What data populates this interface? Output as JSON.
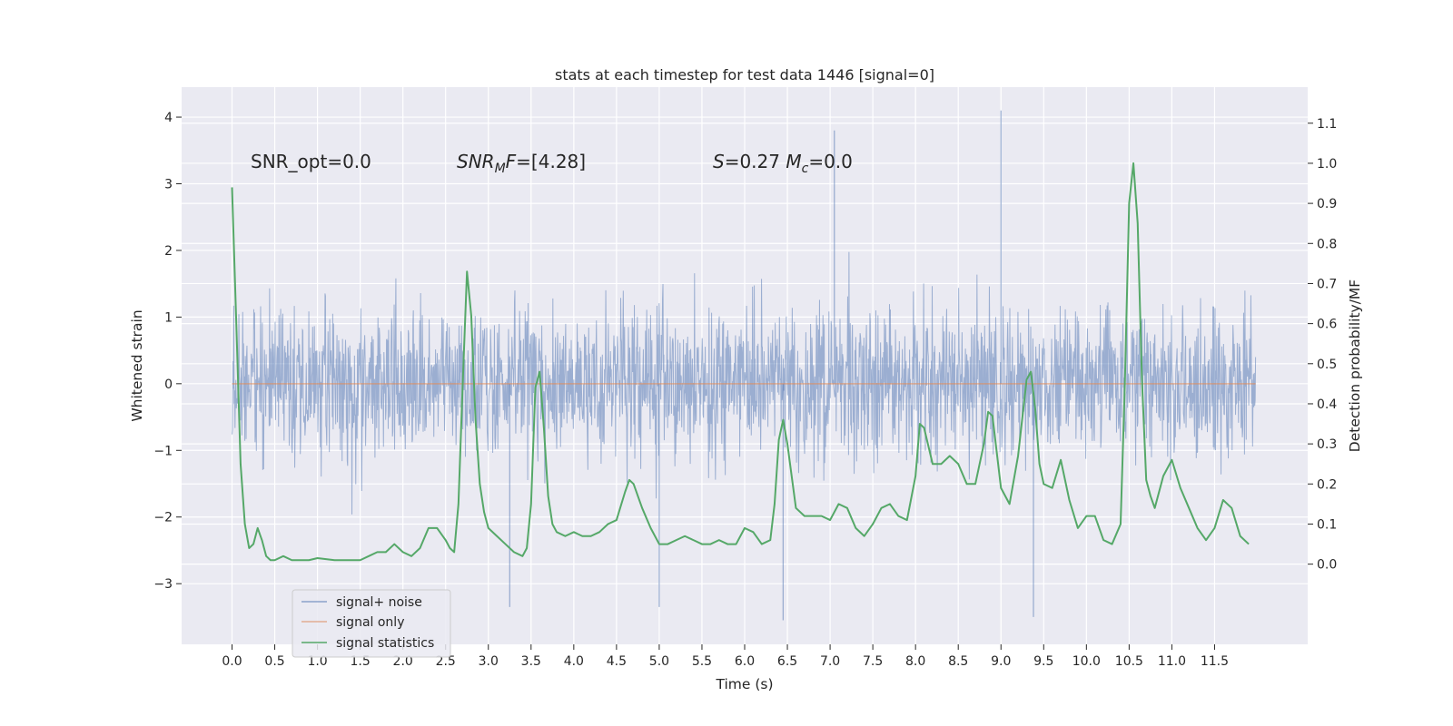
{
  "chart_data": {
    "type": "line",
    "title": "stats at each timestep for test data 1446 [signal=0]",
    "xlabel": "Time (s)",
    "ylabel_left": "Whitened strain",
    "ylabel_right": "Detection probability/MF",
    "xlim": [
      -0.59,
      12.59
    ],
    "ylim_left": [
      -3.91,
      4.45
    ],
    "ylim_right": [
      -0.2,
      1.19
    ],
    "x_ticks": [
      0.0,
      0.5,
      1.0,
      1.5,
      2.0,
      2.5,
      3.0,
      3.5,
      4.0,
      4.5,
      5.0,
      5.5,
      6.0,
      6.5,
      7.0,
      7.5,
      8.0,
      8.5,
      9.0,
      9.5,
      10.0,
      10.5,
      11.0,
      11.5
    ],
    "x_tick_labels": [
      "0.0",
      "0.5",
      "1.0",
      "1.5",
      "2.0",
      "2.5",
      "3.0",
      "3.5",
      "4.0",
      "4.5",
      "5.0",
      "5.5",
      "6.0",
      "6.5",
      "7.0",
      "7.5",
      "8.0",
      "8.5",
      "9.0",
      "9.5",
      "10.0",
      "10.5",
      "11.0",
      "11.5"
    ],
    "y_ticks_left": [
      -3,
      -2,
      -1,
      0,
      1,
      2,
      3,
      4
    ],
    "y_tick_labels_left": [
      "−3",
      "−2",
      "−1",
      "0",
      "1",
      "2",
      "3",
      "4"
    ],
    "y_ticks_right": [
      0.0,
      0.1,
      0.2,
      0.3,
      0.4,
      0.5,
      0.6,
      0.7,
      0.8,
      0.9,
      1.0,
      1.1
    ],
    "y_tick_labels_right": [
      "0.0",
      "0.1",
      "0.2",
      "0.3",
      "0.4",
      "0.5",
      "0.6",
      "0.7",
      "0.8",
      "0.9",
      "1.0",
      "1.1"
    ],
    "grid": true,
    "legend_position": "lower-left",
    "annotations": [
      {
        "text": "SNR_opt=0.0",
        "x": 0.2,
        "y": 3.3
      },
      {
        "text": "SNR_MF=[4.28]",
        "x": 2.6,
        "y": 3.3
      },
      {
        "text": "S=0.27   M_c=0.0",
        "x": 5.6,
        "y": 3.3
      }
    ],
    "series": [
      {
        "name": "signal+ noise",
        "axis": "left",
        "color": "#4c72b0",
        "style": "dense noise trace",
        "x_range": [
          0.0,
          11.98
        ],
        "envelope_upper": 2.8,
        "envelope_lower": -2.6,
        "max": 4.1,
        "min": -3.55,
        "notable_peaks": [
          {
            "x": 9.0,
            "y": 4.1
          },
          {
            "x": 7.05,
            "y": 3.8
          },
          {
            "x": 6.45,
            "y": -3.55
          },
          {
            "x": 9.38,
            "y": -3.5
          },
          {
            "x": 3.25,
            "y": -3.35
          },
          {
            "x": 5.0,
            "y": -3.35
          }
        ]
      },
      {
        "name": "signal only",
        "axis": "left",
        "color": "#dd8452",
        "x": [
          0.0,
          11.98
        ],
        "values": [
          0.0,
          0.0
        ]
      },
      {
        "name": "signal statistics",
        "axis": "right",
        "color": "#55a868",
        "x": [
          0.0,
          0.05,
          0.1,
          0.15,
          0.2,
          0.25,
          0.3,
          0.35,
          0.4,
          0.45,
          0.5,
          0.6,
          0.7,
          0.8,
          0.9,
          1.0,
          1.2,
          1.4,
          1.5,
          1.6,
          1.7,
          1.8,
          1.9,
          2.0,
          2.1,
          2.2,
          2.3,
          2.4,
          2.5,
          2.55,
          2.6,
          2.65,
          2.7,
          2.75,
          2.8,
          2.85,
          2.9,
          2.95,
          3.0,
          3.1,
          3.2,
          3.3,
          3.4,
          3.45,
          3.5,
          3.55,
          3.6,
          3.65,
          3.7,
          3.75,
          3.8,
          3.9,
          4.0,
          4.1,
          4.2,
          4.3,
          4.4,
          4.5,
          4.6,
          4.65,
          4.7,
          4.8,
          4.9,
          5.0,
          5.1,
          5.2,
          5.3,
          5.4,
          5.5,
          5.6,
          5.7,
          5.8,
          5.9,
          6.0,
          6.1,
          6.2,
          6.3,
          6.35,
          6.4,
          6.45,
          6.5,
          6.6,
          6.7,
          6.8,
          6.9,
          7.0,
          7.1,
          7.2,
          7.3,
          7.4,
          7.5,
          7.6,
          7.7,
          7.8,
          7.9,
          8.0,
          8.05,
          8.1,
          8.2,
          8.3,
          8.4,
          8.5,
          8.6,
          8.7,
          8.8,
          8.85,
          8.9,
          9.0,
          9.1,
          9.2,
          9.3,
          9.35,
          9.4,
          9.45,
          9.5,
          9.6,
          9.7,
          9.8,
          9.9,
          10.0,
          10.1,
          10.2,
          10.3,
          10.4,
          10.45,
          10.5,
          10.55,
          10.6,
          10.65,
          10.7,
          10.75,
          10.8,
          10.9,
          11.0,
          11.1,
          11.2,
          11.3,
          11.4,
          11.5,
          11.6,
          11.7,
          11.8,
          11.9
        ],
        "values": [
          0.94,
          0.6,
          0.25,
          0.1,
          0.04,
          0.05,
          0.09,
          0.06,
          0.02,
          0.01,
          0.01,
          0.02,
          0.01,
          0.01,
          0.01,
          0.015,
          0.01,
          0.01,
          0.01,
          0.02,
          0.03,
          0.03,
          0.05,
          0.03,
          0.02,
          0.04,
          0.09,
          0.09,
          0.06,
          0.04,
          0.03,
          0.15,
          0.45,
          0.73,
          0.62,
          0.36,
          0.2,
          0.13,
          0.09,
          0.07,
          0.05,
          0.03,
          0.02,
          0.04,
          0.15,
          0.44,
          0.48,
          0.34,
          0.17,
          0.1,
          0.08,
          0.07,
          0.08,
          0.07,
          0.07,
          0.08,
          0.1,
          0.11,
          0.18,
          0.21,
          0.2,
          0.14,
          0.09,
          0.05,
          0.05,
          0.06,
          0.07,
          0.06,
          0.05,
          0.05,
          0.06,
          0.05,
          0.05,
          0.09,
          0.08,
          0.05,
          0.06,
          0.15,
          0.31,
          0.36,
          0.3,
          0.14,
          0.12,
          0.12,
          0.12,
          0.11,
          0.15,
          0.14,
          0.09,
          0.07,
          0.1,
          0.14,
          0.15,
          0.12,
          0.11,
          0.22,
          0.35,
          0.34,
          0.25,
          0.25,
          0.27,
          0.25,
          0.2,
          0.2,
          0.3,
          0.38,
          0.37,
          0.19,
          0.15,
          0.27,
          0.46,
          0.48,
          0.39,
          0.25,
          0.2,
          0.19,
          0.26,
          0.16,
          0.09,
          0.12,
          0.12,
          0.06,
          0.05,
          0.1,
          0.45,
          0.9,
          1.0,
          0.85,
          0.46,
          0.21,
          0.17,
          0.14,
          0.22,
          0.26,
          0.19,
          0.14,
          0.09,
          0.06,
          0.09,
          0.16,
          0.14,
          0.07,
          0.05
        ]
      }
    ]
  }
}
